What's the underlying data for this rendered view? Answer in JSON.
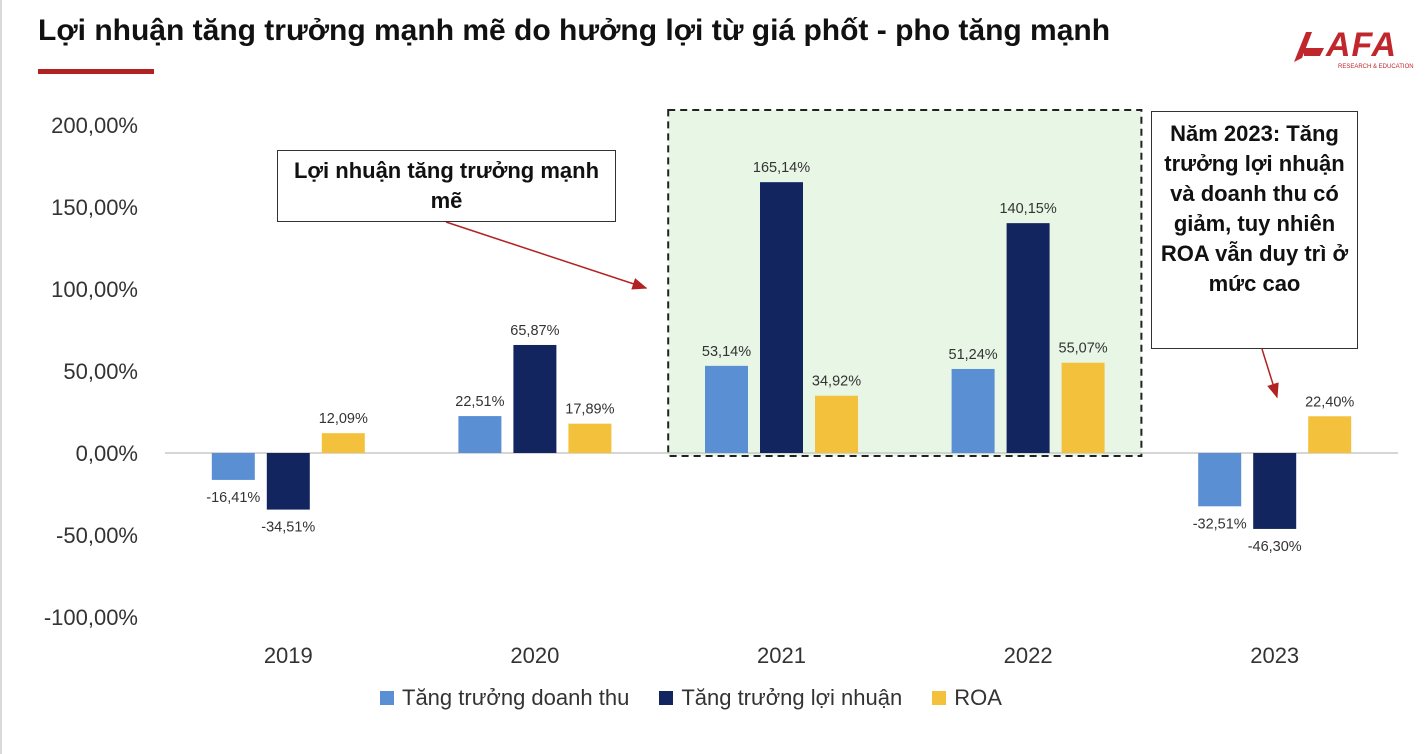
{
  "header": {
    "title": "Lợi nhuận tăng trưởng mạnh mẽ do hưởng lợi từ giá phốt - pho tăng mạnh",
    "logo_text": "AFA",
    "logo_subtext": "RESEARCH & EDUCATION"
  },
  "colors": {
    "accent": "#b22222",
    "revenue": "#5b8fd4",
    "profit": "#13255e",
    "roa": "#f4c13c",
    "highlight": "#e8f6e6"
  },
  "chart_data": {
    "type": "bar",
    "categories": [
      "2019",
      "2020",
      "2021",
      "2022",
      "2023"
    ],
    "series": [
      {
        "name": "Tăng trưởng doanh thu",
        "values": [
          -16.41,
          22.51,
          53.14,
          51.24,
          -32.51
        ]
      },
      {
        "name": "Tăng trưởng lợi nhuận",
        "values": [
          -34.51,
          65.87,
          165.14,
          140.15,
          -46.3
        ]
      },
      {
        "name": "ROA",
        "values": [
          12.09,
          17.89,
          34.92,
          55.07,
          22.4
        ]
      }
    ],
    "data_labels": [
      [
        "-16,41%",
        "22,51%",
        "53,14%",
        "51,24%",
        "-32,51%"
      ],
      [
        "-34,51%",
        "65,87%",
        "165,14%",
        "140,15%",
        "-46,30%"
      ],
      [
        "12,09%",
        "17,89%",
        "34,92%",
        "55,07%",
        "22,40%"
      ]
    ],
    "yticks": [
      "200,00%",
      "150,00%",
      "100,00%",
      "50,00%",
      "0,00%",
      "-50,00%",
      "-100,00%"
    ],
    "ylim": [
      -100,
      200
    ],
    "legend_position": "bottom",
    "highlight_categories": [
      "2021",
      "2022"
    ],
    "annotations": [
      {
        "text": "Lợi nhuận tăng trưởng mạnh mẽ"
      },
      {
        "text": "Năm 2023: Tăng trưởng lợi nhuận và doanh thu có giảm, tuy nhiên ROA vẫn duy trì ở mức cao"
      }
    ]
  }
}
